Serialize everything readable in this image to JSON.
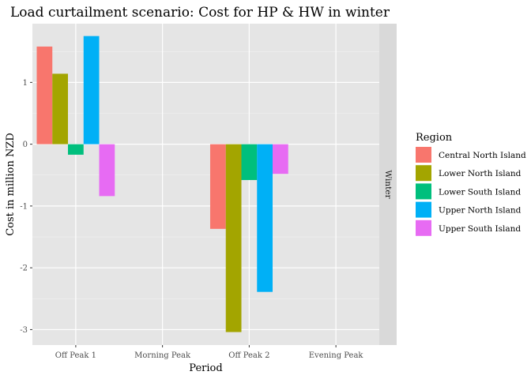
{
  "chart_data": {
    "type": "bar",
    "title": "Load curtailment scenario: Cost for HP & HW in winter",
    "xlabel": "Period",
    "ylabel": "Cost in million NZD",
    "facet_label": "Winter",
    "categories": [
      "Off Peak 1",
      "Morning Peak",
      "Off Peak 2",
      "Evening Peak"
    ],
    "ylim": [
      -3.25,
      1.95
    ],
    "yticks": [
      -3,
      -2,
      -1,
      0,
      1
    ],
    "grid": true,
    "legend_title": "Region",
    "legend_position": "right",
    "series": [
      {
        "name": "Central North Island",
        "color": "#F8766D",
        "values": [
          1.58,
          null,
          -1.37,
          null
        ]
      },
      {
        "name": "Lower North Island",
        "color": "#A3A500",
        "values": [
          1.14,
          null,
          -3.04,
          null
        ]
      },
      {
        "name": "Lower South Island",
        "color": "#00BF7D",
        "values": [
          -0.17,
          null,
          -0.58,
          null
        ]
      },
      {
        "name": "Upper North Island",
        "color": "#00B0F6",
        "values": [
          1.75,
          null,
          -2.39,
          null
        ]
      },
      {
        "name": "Upper South Island",
        "color": "#E76BF3",
        "values": [
          -0.84,
          null,
          -0.48,
          null
        ]
      }
    ]
  }
}
